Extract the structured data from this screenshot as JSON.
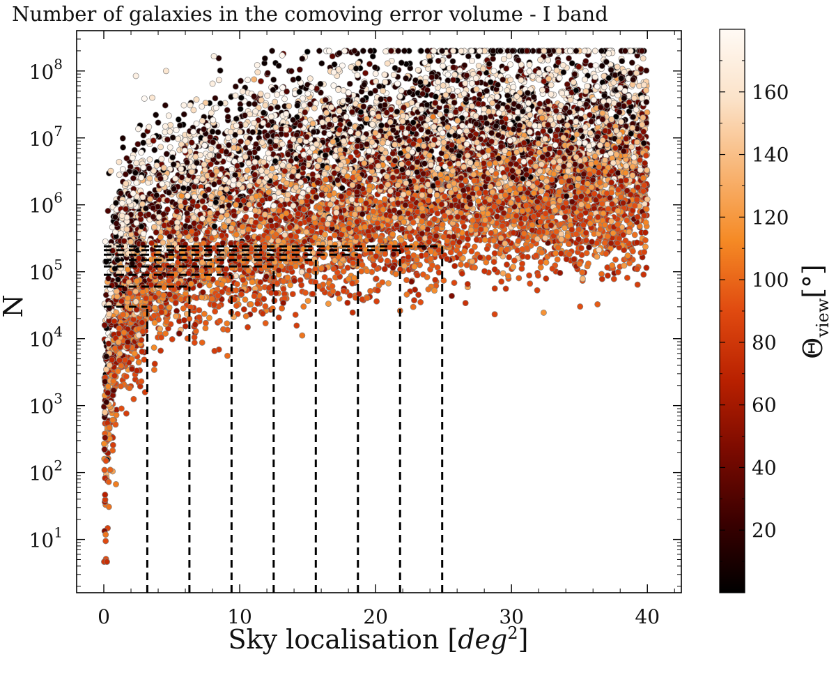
{
  "chart_data": {
    "type": "scatter",
    "title": "Number of galaxies in the comoving error volume - I band",
    "xlabel": "Sky localisation [deg²]",
    "ylabel": "N",
    "xscale": "linear",
    "yscale": "log",
    "xlim": [
      -2,
      42.5
    ],
    "ylim": [
      1.6,
      400000000
    ],
    "x_ticks": [
      0,
      10,
      20,
      30,
      40
    ],
    "x_tick_labels": [
      "0",
      "10",
      "20",
      "30",
      "40"
    ],
    "y_ticks": [
      10,
      100,
      1000,
      10000,
      100000,
      1000000,
      10000000,
      100000000
    ],
    "y_tick_labels": [
      [
        "10",
        "1"
      ],
      [
        "10",
        "2"
      ],
      [
        "10",
        "3"
      ],
      [
        "10",
        "4"
      ],
      [
        "10",
        "5"
      ],
      [
        "10",
        "6"
      ],
      [
        "10",
        "7"
      ],
      [
        "10",
        "8"
      ]
    ],
    "grid": false,
    "legend": "none",
    "colorbar": {
      "label": "Θview [°]",
      "range": [
        0,
        180
      ],
      "ticks": [
        20,
        40,
        60,
        80,
        100,
        120,
        140,
        160
      ],
      "tick_labels": [
        "20",
        "40",
        "60",
        "80",
        "100",
        "120",
        "140",
        "160"
      ],
      "colormap": "gist_heat_r (black → dark red → red → orange → cream)",
      "stops": [
        "#000000",
        "#3a0000",
        "#7a0a00",
        "#b82000",
        "#e04a10",
        "#f58a25",
        "#f8b575",
        "#fbe2c8",
        "#fffaf5"
      ]
    },
    "point_style": {
      "edge_color": "#808080",
      "radius_units": "small markers"
    },
    "point_cloud": {
      "description": "approx. 9000 galaxies-count points; low viewing angles (cream/black) lie higher, mid angles (red) lie lower",
      "approx_points": 9000,
      "x_range": [
        0,
        40
      ],
      "y_range": [
        4,
        190000000
      ]
    },
    "threshold_lines": {
      "style": "black dashed",
      "description": "vertical dashed lines from the bottom to a horizontal dashed line running left to x=0",
      "segments": [
        {
          "x": 3.2,
          "y": 30000
        },
        {
          "x": 6.3,
          "y": 60000
        },
        {
          "x": 9.4,
          "y": 90000
        },
        {
          "x": 12.5,
          "y": 120000
        },
        {
          "x": 15.6,
          "y": 150000
        },
        {
          "x": 18.7,
          "y": 180000
        },
        {
          "x": 21.8,
          "y": 210000
        },
        {
          "x": 24.9,
          "y": 240000
        }
      ]
    }
  }
}
